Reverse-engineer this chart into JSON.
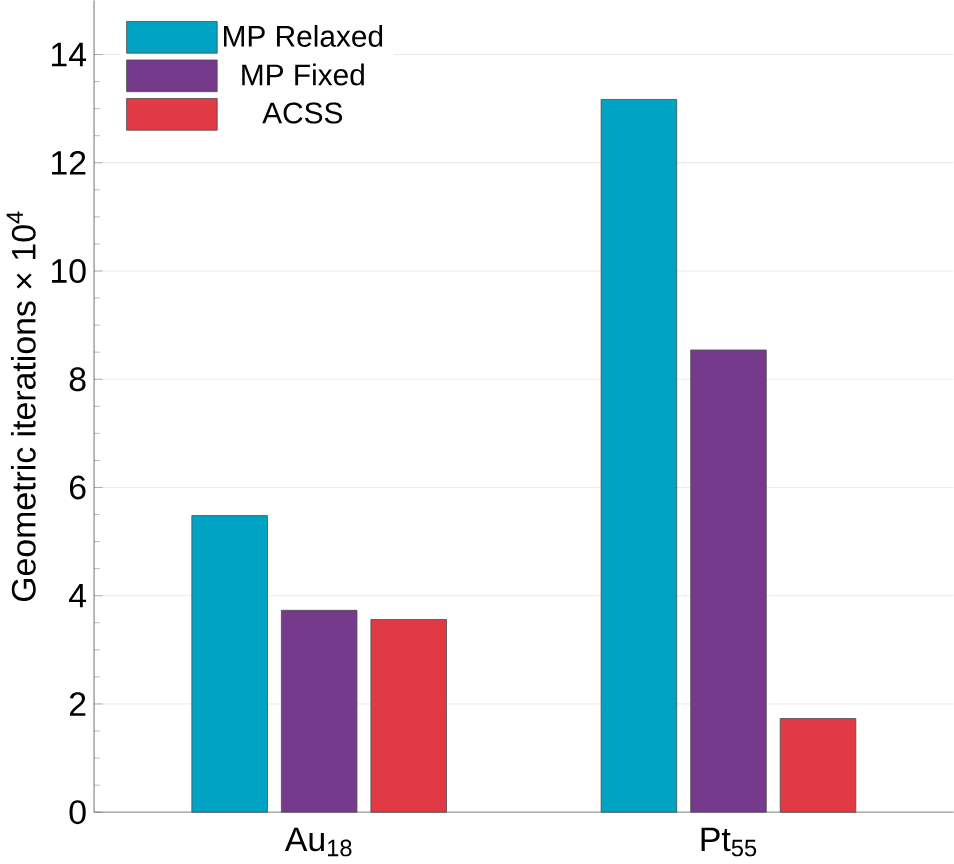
{
  "chart_data": {
    "type": "bar",
    "ylabel": "Geometric iterations × 10$^{4}$",
    "categories": [
      "Au$_{18}$",
      "Pt$_{55}$"
    ],
    "series": [
      {
        "name": "MP Relaxed",
        "color": "#00a3c4",
        "values": [
          5.48,
          13.17
        ]
      },
      {
        "name": "MP Fixed",
        "color": "#763a8c",
        "values": [
          3.73,
          8.54
        ]
      },
      {
        "name": "ACSS",
        "color": "#e03a45",
        "values": [
          3.56,
          1.73
        ]
      }
    ],
    "ylim": [
      0,
      15
    ],
    "yticks": [
      0,
      2,
      4,
      6,
      8,
      10,
      12,
      14
    ],
    "grid": "y",
    "legend": "top left"
  }
}
